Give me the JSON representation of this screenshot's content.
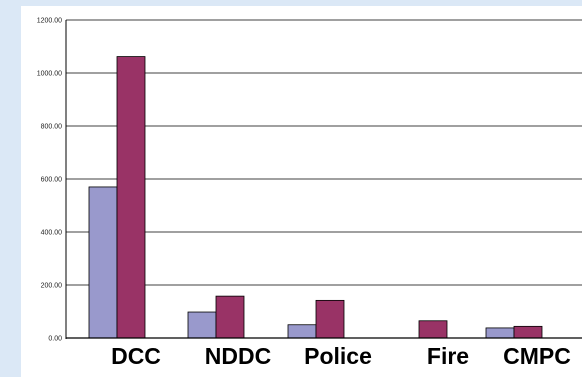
{
  "chart_data": {
    "type": "bar",
    "categories": [
      "DCC",
      "NDDC",
      "Police",
      "Fire",
      "CMPC"
    ],
    "series": [
      {
        "values": [
          570,
          98,
          50,
          0,
          38
        ],
        "color": "#9999cc"
      },
      {
        "values": [
          1062,
          158,
          142,
          65,
          44
        ],
        "color": "#993366"
      }
    ],
    "ylim": [
      0,
      1200
    ],
    "yticks": [
      "0.00",
      "200.00",
      "400.00",
      "600.00",
      "800.00",
      "1000.00",
      "1200.00"
    ],
    "grid": true,
    "legend": "none",
    "title": "",
    "xlabel": "",
    "ylabel": ""
  },
  "colors": {
    "background": "#dbe8f6",
    "plot_area": "#ffffff",
    "bar_outline": "#000000"
  }
}
